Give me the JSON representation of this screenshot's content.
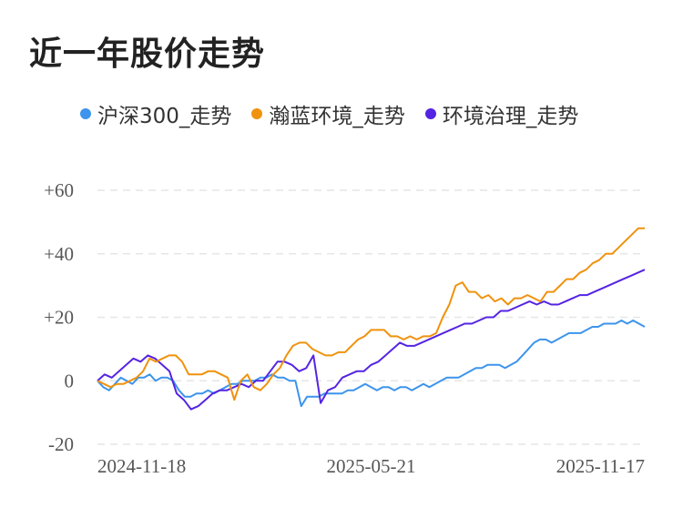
{
  "chart_data": {
    "type": "line",
    "title": "近一年股价走势",
    "x_tick_labels": [
      "2024-11-18",
      "2025-05-21",
      "2025-11-17"
    ],
    "y_tick_labels": [
      "+60",
      "+40",
      "+20",
      "0",
      "-20"
    ],
    "y_ticks": [
      60,
      40,
      20,
      0,
      -20
    ],
    "ylim": [
      -20,
      60
    ],
    "grid": true,
    "legend_position": "top",
    "series": [
      {
        "name": "沪深300_走势",
        "color": "#3d94ec",
        "values": [
          0,
          -2,
          -3,
          -1,
          1,
          0,
          -1,
          1,
          1,
          2,
          0,
          1,
          1,
          0,
          -3,
          -5,
          -5,
          -4,
          -4,
          -3,
          -4,
          -3,
          -2,
          -1,
          -1,
          0,
          0,
          0,
          1,
          1,
          2,
          1,
          1,
          0,
          0,
          -8,
          -5,
          -5,
          -5,
          -4,
          -4,
          -4,
          -4,
          -3,
          -3,
          -2,
          -1,
          -2,
          -3,
          -2,
          -2,
          -3,
          -2,
          -2,
          -3,
          -2,
          -1,
          -2,
          -1,
          0,
          1,
          1,
          1,
          2,
          3,
          4,
          4,
          5,
          5,
          5,
          4,
          5,
          6,
          8,
          10,
          12,
          13,
          13,
          12,
          13,
          14,
          15,
          15,
          15,
          16,
          17,
          17,
          18,
          18,
          18,
          19,
          18,
          19,
          18,
          17
        ]
      },
      {
        "name": "瀚蓝环境_走势",
        "color": "#f0920d",
        "values": [
          0,
          -1,
          -2,
          -1,
          -1,
          0,
          1,
          3,
          7,
          6,
          7,
          8,
          8,
          6,
          2,
          2,
          2,
          3,
          3,
          2,
          1,
          -6,
          0,
          2,
          -2,
          -3,
          -1,
          2,
          4,
          8,
          11,
          12,
          12,
          10,
          9,
          8,
          8,
          9,
          9,
          11,
          13,
          14,
          16,
          16,
          16,
          14,
          14,
          13,
          14,
          13,
          14,
          14,
          15,
          20,
          24,
          30,
          31,
          28,
          28,
          26,
          27,
          25,
          26,
          24,
          26,
          26,
          27,
          26,
          25,
          28,
          28,
          30,
          32,
          32,
          34,
          35,
          37,
          38,
          40,
          40,
          42,
          44,
          46,
          48,
          48
        ]
      },
      {
        "name": "环境治理_走势",
        "color": "#5524e3",
        "values": [
          0,
          2,
          1,
          3,
          5,
          7,
          6,
          8,
          7,
          5,
          3,
          -4,
          -6,
          -9,
          -8,
          -6,
          -4,
          -3,
          -3,
          -2,
          -1,
          -2,
          0,
          0,
          3,
          6,
          6,
          5,
          3,
          4,
          8,
          -7,
          -3,
          -2,
          1,
          2,
          3,
          3,
          5,
          6,
          8,
          10,
          12,
          11,
          11,
          12,
          13,
          14,
          15,
          16,
          17,
          18,
          18,
          19,
          20,
          20,
          22,
          22,
          23,
          24,
          25,
          24,
          25,
          24,
          24,
          25,
          26,
          27,
          27,
          28,
          29,
          30,
          31,
          32,
          33,
          34,
          35
        ]
      }
    ]
  }
}
